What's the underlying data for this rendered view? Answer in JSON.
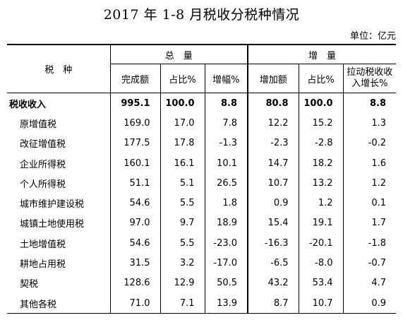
{
  "title": "2017 年 1-8 月税收分税种情况",
  "unit": "单位：亿元",
  "headers": {
    "tax_type": "税　种",
    "group_total": "总　量",
    "group_increase": "增　量",
    "cols": [
      "完成额",
      "占比%",
      "增幅%",
      "增加额",
      "占比%",
      "拉动税收收入增长%"
    ]
  },
  "rows": [
    {
      "name": "税收收入",
      "values": [
        "995.1",
        "100.0",
        "8.8",
        "80.8",
        "100.0",
        "8.8"
      ]
    },
    {
      "name": "原增值税",
      "values": [
        "169.0",
        "17.0",
        "7.8",
        "12.2",
        "15.2",
        "1.3"
      ]
    },
    {
      "name": "改征增值税",
      "values": [
        "177.5",
        "17.8",
        "-1.3",
        "-2.3",
        "-2.8",
        "-0.2"
      ]
    },
    {
      "name": "企业所得税",
      "values": [
        "160.1",
        "16.1",
        "10.1",
        "14.7",
        "18.2",
        "1.6"
      ]
    },
    {
      "name": "个人所得税",
      "values": [
        "51.1",
        "5.1",
        "26.5",
        "10.7",
        "13.2",
        "1.2"
      ]
    },
    {
      "name": "城市维护建设税",
      "values": [
        "54.6",
        "5.5",
        "1.8",
        "0.9",
        "1.2",
        "0.1"
      ]
    },
    {
      "name": "城镇土地使用税",
      "values": [
        "97.0",
        "9.7",
        "18.9",
        "15.4",
        "19.1",
        "1.7"
      ]
    },
    {
      "name": "土地增值税",
      "values": [
        "54.6",
        "5.5",
        "-23.0",
        "-16.3",
        "-20.1",
        "-1.8"
      ]
    },
    {
      "name": "耕地占用税",
      "values": [
        "31.5",
        "3.2",
        "-17.0",
        "-6.5",
        "-8.0",
        "-0.7"
      ]
    },
    {
      "name": "契税",
      "values": [
        "128.6",
        "12.9",
        "50.5",
        "43.2",
        "53.4",
        "4.7"
      ]
    },
    {
      "name": "其他各税",
      "values": [
        "71.0",
        "7.1",
        "13.9",
        "8.7",
        "10.7",
        "0.9"
      ]
    }
  ]
}
